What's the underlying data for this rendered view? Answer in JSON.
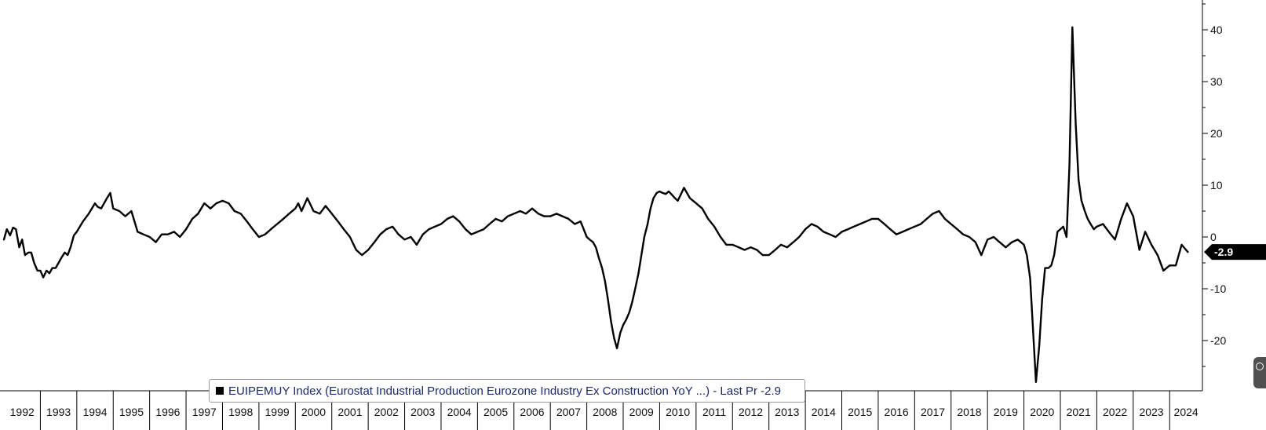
{
  "chart_data": {
    "type": "line",
    "title": "",
    "xlabel": "",
    "ylabel": "",
    "ylim": [
      -30,
      45
    ],
    "yticks": [
      40,
      30,
      20,
      10,
      0,
      -10,
      -20
    ],
    "ytick_labels": [
      "40",
      "30",
      "20",
      "10",
      "0",
      "-10",
      "-20"
    ],
    "xlim": [
      1992.0,
      2024.9
    ],
    "xticks": [
      1992,
      1993,
      1994,
      1995,
      1996,
      1997,
      1998,
      1999,
      2000,
      2001,
      2002,
      2003,
      2004,
      2005,
      2006,
      2007,
      2008,
      2009,
      2010,
      2011,
      2012,
      2013,
      2014,
      2015,
      2016,
      2017,
      2018,
      2019,
      2020,
      2021,
      2022,
      2023,
      2024
    ],
    "xtick_labels": [
      "1992",
      "1993",
      "1994",
      "1995",
      "1996",
      "1997",
      "1998",
      "1999",
      "2000",
      "2001",
      "2002",
      "2003",
      "2004",
      "2005",
      "2006",
      "2007",
      "2008",
      "2009",
      "2010",
      "2011",
      "2012",
      "2013",
      "2014",
      "2015",
      "2016",
      "2017",
      "2018",
      "2019",
      "2020",
      "2021",
      "2022",
      "2023",
      "2024"
    ],
    "last_value": -2.9,
    "last_value_label": "-2.9",
    "legend_text": "EUIPEMUY Index (Eurostat Industrial Production Eurozone Industry Ex Construction YoY ...) - Last Pr -2.9",
    "legend_position": "bottom-left",
    "line_color": "#000000",
    "series": [
      {
        "x": [
          1992.0,
          1992.08,
          1992.17,
          1992.25,
          1992.33,
          1992.42,
          1992.5,
          1992.58,
          1992.67,
          1992.75,
          1992.83,
          1992.92,
          1993.0,
          1993.08,
          1993.17,
          1993.25,
          1993.33,
          1993.42,
          1993.5,
          1993.58,
          1993.67,
          1993.75,
          1993.83,
          1993.92,
          1994.0,
          1994.17,
          1994.33,
          1994.5,
          1994.58,
          1994.67,
          1994.75,
          1994.83,
          1994.92,
          1995.0,
          1995.17,
          1995.33,
          1995.5,
          1995.67,
          1995.83,
          1996.0,
          1996.17,
          1996.33,
          1996.5,
          1996.67,
          1996.83,
          1997.0,
          1997.17,
          1997.33,
          1997.5,
          1997.67,
          1997.83,
          1998.0,
          1998.17,
          1998.33,
          1998.5,
          1998.67,
          1998.83,
          1999.0,
          1999.17,
          1999.33,
          1999.5,
          1999.67,
          1999.83,
          2000.0,
          2000.08,
          2000.17,
          2000.33,
          2000.5,
          2000.67,
          2000.83,
          2001.0,
          2001.17,
          2001.33,
          2001.5,
          2001.67,
          2001.83,
          2002.0,
          2002.17,
          2002.33,
          2002.5,
          2002.67,
          2002.83,
          2003.0,
          2003.17,
          2003.33,
          2003.5,
          2003.67,
          2003.83,
          2004.0,
          2004.17,
          2004.33,
          2004.5,
          2004.67,
          2004.83,
          2005.0,
          2005.17,
          2005.33,
          2005.5,
          2005.67,
          2005.83,
          2006.0,
          2006.17,
          2006.33,
          2006.5,
          2006.67,
          2006.83,
          2007.0,
          2007.17,
          2007.33,
          2007.5,
          2007.67,
          2007.83,
          2008.0,
          2008.08,
          2008.17,
          2008.25,
          2008.33,
          2008.42,
          2008.5,
          2008.58,
          2008.67,
          2008.75,
          2008.83,
          2008.92,
          2009.0,
          2009.08,
          2009.17,
          2009.25,
          2009.33,
          2009.42,
          2009.5,
          2009.58,
          2009.67,
          2009.75,
          2009.83,
          2009.92,
          2010.0,
          2010.08,
          2010.17,
          2010.25,
          2010.33,
          2010.42,
          2010.5,
          2010.67,
          2010.83,
          2011.0,
          2011.17,
          2011.33,
          2011.5,
          2011.67,
          2011.83,
          2012.0,
          2012.17,
          2012.33,
          2012.5,
          2012.67,
          2012.83,
          2013.0,
          2013.17,
          2013.33,
          2013.5,
          2013.67,
          2013.83,
          2014.0,
          2014.17,
          2014.33,
          2014.5,
          2014.67,
          2014.83,
          2015.0,
          2015.17,
          2015.33,
          2015.5,
          2015.67,
          2015.83,
          2016.0,
          2016.17,
          2016.33,
          2016.5,
          2016.67,
          2016.83,
          2017.0,
          2017.17,
          2017.33,
          2017.5,
          2017.67,
          2017.83,
          2018.0,
          2018.17,
          2018.33,
          2018.5,
          2018.67,
          2018.83,
          2019.0,
          2019.17,
          2019.33,
          2019.5,
          2019.67,
          2019.83,
          2020.0,
          2020.08,
          2020.17,
          2020.25,
          2020.33,
          2020.42,
          2020.5,
          2020.58,
          2020.67,
          2020.75,
          2020.83,
          2020.92,
          2021.0,
          2021.08,
          2021.17,
          2021.25,
          2021.33,
          2021.42,
          2021.5,
          2021.58,
          2021.67,
          2021.75,
          2021.83,
          2021.92,
          2022.0,
          2022.17,
          2022.33,
          2022.5,
          2022.67,
          2022.83,
          2023.0,
          2023.17,
          2023.33,
          2023.5,
          2023.67,
          2023.83,
          2024.0,
          2024.17,
          2024.33,
          2024.5
        ],
        "y": [
          -0.5,
          1.5,
          0.3,
          1.8,
          1.5,
          -2.0,
          -0.5,
          -3.5,
          -3.0,
          -3.0,
          -5.0,
          -6.5,
          -6.5,
          -7.8,
          -6.5,
          -7.0,
          -6.0,
          -6.0,
          -5.0,
          -4.0,
          -3.0,
          -3.5,
          -2.0,
          0.3,
          1.0,
          3.0,
          4.5,
          6.5,
          5.8,
          5.5,
          6.5,
          7.5,
          8.5,
          5.5,
          5.0,
          4.0,
          5.0,
          1.0,
          0.5,
          0.0,
          -1.0,
          0.5,
          0.5,
          1.0,
          0.0,
          1.5,
          3.5,
          4.5,
          6.5,
          5.5,
          6.5,
          7.0,
          6.5,
          5.0,
          4.5,
          3.0,
          1.5,
          0.0,
          0.5,
          1.5,
          2.5,
          3.5,
          4.5,
          5.5,
          6.5,
          5.0,
          7.5,
          5.0,
          4.5,
          6.0,
          4.5,
          3.0,
          1.5,
          0.0,
          -2.5,
          -3.5,
          -2.5,
          -1.0,
          0.5,
          1.5,
          2.0,
          0.5,
          -0.5,
          0.0,
          -1.5,
          0.5,
          1.5,
          2.0,
          2.5,
          3.5,
          4.0,
          3.0,
          1.5,
          0.5,
          1.0,
          1.5,
          2.5,
          3.5,
          3.0,
          4.0,
          4.5,
          5.0,
          4.5,
          5.5,
          4.5,
          4.0,
          4.0,
          4.5,
          4.0,
          3.5,
          2.5,
          3.0,
          0.0,
          -0.5,
          -1.0,
          -2.0,
          -4.0,
          -6.0,
          -8.5,
          -12.0,
          -16.5,
          -19.5,
          -21.5,
          -18.5,
          -17.0,
          -16.0,
          -14.5,
          -12.5,
          -10.0,
          -7.0,
          -3.5,
          0.0,
          2.5,
          5.5,
          7.5,
          8.5,
          8.8,
          8.5,
          8.3,
          8.8,
          8.2,
          7.5,
          7.0,
          9.5,
          7.5,
          6.5,
          5.5,
          3.5,
          2.0,
          0.0,
          -1.5,
          -1.5,
          -2.0,
          -2.5,
          -2.0,
          -2.5,
          -3.5,
          -3.5,
          -2.5,
          -1.5,
          -2.0,
          -1.0,
          0.0,
          1.5,
          2.5,
          2.0,
          1.0,
          0.5,
          0.0,
          1.0,
          1.5,
          2.0,
          2.5,
          3.0,
          3.5,
          3.5,
          2.5,
          1.5,
          0.5,
          1.0,
          1.5,
          2.0,
          2.5,
          3.5,
          4.5,
          5.0,
          3.5,
          2.5,
          1.5,
          0.5,
          0.0,
          -1.0,
          -3.5,
          -0.5,
          0.0,
          -1.0,
          -2.0,
          -1.0,
          -0.5,
          -1.5,
          -3.5,
          -8.0,
          -18.0,
          -28.0,
          -21.0,
          -12.0,
          -6.0,
          -6.0,
          -5.5,
          -3.5,
          1.0,
          1.5,
          2.0,
          0.0,
          14.0,
          40.5,
          22.0,
          11.0,
          7.0,
          5.0,
          3.5,
          2.5,
          1.5,
          2.0,
          2.5,
          1.0,
          -0.5,
          3.5,
          6.5,
          4.0,
          -2.5,
          1.0,
          -1.5,
          -3.5,
          -6.5,
          -5.5,
          -5.5,
          -1.5,
          -2.9
        ]
      }
    ]
  }
}
